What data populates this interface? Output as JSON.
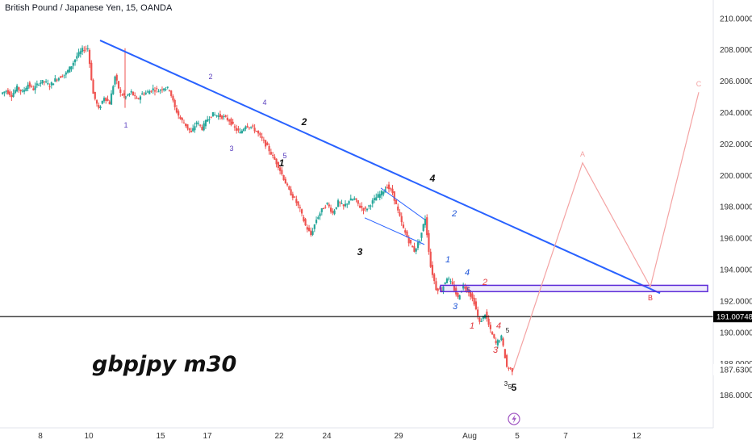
{
  "header": {
    "symbol_title": "British Pound / Japanese Yen, 15, OANDA"
  },
  "annotation_text": "gbpjpy m30",
  "current_price_label": "191.00748",
  "last_price_label": "187.63000",
  "flash_icon": "lightning-icon",
  "colors": {
    "trendline": "#2962ff",
    "wave_pink": "#f4a3a3",
    "zone_border": "#5b2ad8",
    "candle_up": "#26a69a",
    "candle_down": "#ef5350",
    "wave_black": "#111111",
    "wave_blue": "#1e55d8",
    "wave_purple": "#5a3fbf",
    "wave_red": "#e0343a"
  },
  "chart_data": {
    "type": "line",
    "title": "British Pound / Japanese Yen, 15, OANDA",
    "xlabel": "",
    "ylabel": "",
    "x_ticks": [
      "8",
      "10",
      "15",
      "17",
      "22",
      "24",
      "29",
      "Aug",
      "5",
      "7",
      "12"
    ],
    "y_ticks": [
      "210.00000",
      "208.00000",
      "206.00000",
      "204.00000",
      "202.00000",
      "200.00000",
      "198.00000",
      "196.00000",
      "194.00000",
      "192.00000",
      "190.00000",
      "188.00000",
      "186.00000"
    ],
    "ylim": [
      185.2,
      211.3
    ],
    "grid": false,
    "series": [
      {
        "values": [
          [
            205.2,
            205.4,
            205.1,
            205.6,
            205.3,
            205.8,
            205.5,
            205.9,
            206.0,
            205.7,
            206.1,
            206.3,
            206.5,
            207.0,
            207.6,
            208.0,
            208.1,
            205.2,
            204.2,
            205.0,
            204.6,
            206.3,
            205.2,
            205.0,
            205.3,
            204.8,
            205.2,
            205.3,
            205.5,
            205.4,
            205.6,
            205.5,
            204.3,
            203.6,
            203.2,
            202.7,
            203.4,
            203.0,
            203.6,
            203.9,
            203.8,
            203.7,
            203.5,
            203.0,
            202.7,
            203.2,
            203.1,
            202.8,
            202.3,
            201.8,
            201.2,
            200.6,
            199.8,
            199.0,
            198.5,
            197.8,
            196.8,
            196.2,
            197.2,
            197.8,
            198.2,
            197.6,
            198.3,
            198.0,
            198.4,
            198.5,
            198.0,
            197.8,
            198.2,
            198.6,
            198.9,
            199.3,
            198.9,
            197.7,
            196.6,
            195.8,
            195.2,
            195.9,
            197.3,
            194.2,
            192.8,
            192.7,
            193.5,
            193.0,
            192.2,
            193.0,
            192.6,
            191.9,
            190.6,
            191.2,
            190.1,
            189.3,
            189.7,
            187.8,
            187.6
          ]
        ]
      }
    ],
    "trendline": {
      "from": {
        "x": 10.8,
        "y": 208.6
      },
      "to": {
        "x": 12.6,
        "y": 192.5
      }
    },
    "zone": {
      "y_low": 192.6,
      "y_high": 193.0
    },
    "horizontal_line": 191.00748,
    "projection_path": [
      {
        "label": "",
        "y": 187.6
      },
      {
        "label": "A",
        "y": 200.8
      },
      {
        "label": "B",
        "y": 192.9
      },
      {
        "label": "C",
        "y": 205.3
      }
    ],
    "wave_labels": [
      "1",
      "2",
      "3",
      "4",
      "5",
      "1",
      "2",
      "3",
      "4",
      "5",
      "1",
      "2",
      "3",
      "4",
      "5",
      "1",
      "2",
      "3",
      "4",
      "5",
      "3",
      "5",
      "A",
      "B",
      "C"
    ]
  }
}
